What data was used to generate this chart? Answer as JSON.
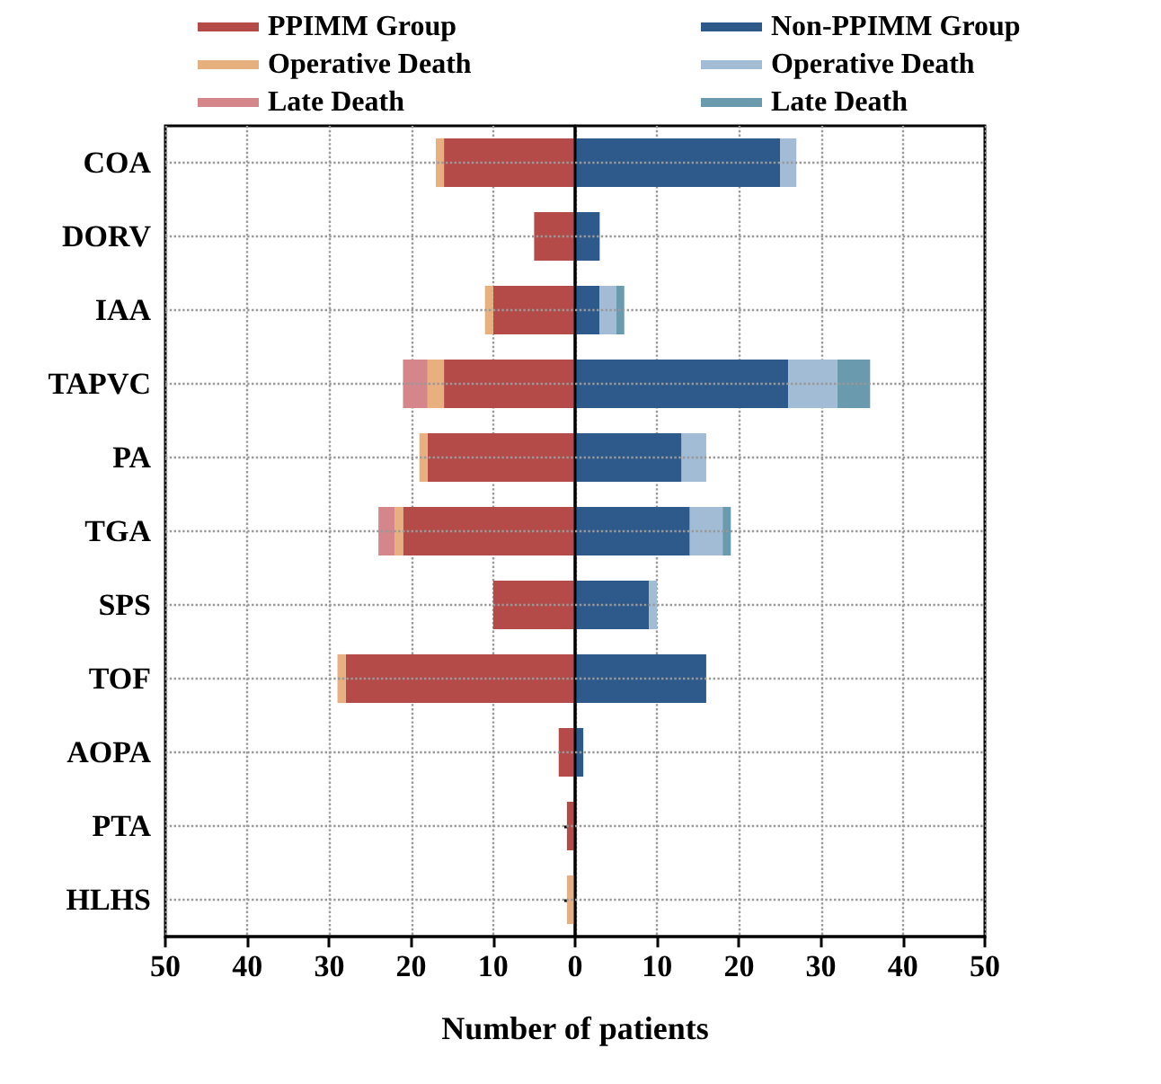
{
  "chart_data": {
    "type": "bar",
    "orientation": "horizontal",
    "stacked": true,
    "categories": [
      "COA",
      "DORV",
      "IAA",
      "TAPVC",
      "PA",
      "TGA",
      "SPS",
      "TOF",
      "AOPA",
      "PTA",
      "HLHS"
    ],
    "series": [
      {
        "name": "PPIMM Group",
        "color": "#b54b48",
        "values": [
          -16,
          -5,
          -10,
          -16,
          -18,
          -21,
          -10,
          -28,
          -2,
          -1,
          0
        ]
      },
      {
        "name": "Operative Death",
        "color": "#e8b07e",
        "values": [
          -1,
          0,
          -1,
          -2,
          -1,
          -1,
          0,
          -1,
          0,
          0,
          -1
        ]
      },
      {
        "name": "Late Death",
        "color": "#d4868a",
        "values": [
          0,
          0,
          0,
          -3,
          0,
          -2,
          0,
          0,
          0,
          0,
          0
        ]
      },
      {
        "name": "Non-PPIMM Group",
        "color": "#2d5a8a",
        "values": [
          25,
          3,
          3,
          26,
          13,
          14,
          9,
          16,
          1,
          0,
          0
        ]
      },
      {
        "name": "Operative Death",
        "color": "#a3bcd6",
        "values": [
          2,
          0,
          2,
          6,
          3,
          4,
          1,
          0,
          0,
          0,
          0
        ]
      },
      {
        "name": "Late Death",
        "color": "#6a9aae",
        "values": [
          0,
          0,
          1,
          4,
          0,
          1,
          0,
          0,
          0,
          0,
          0
        ]
      }
    ],
    "xlabel": "Number of patients",
    "xlim": [
      -50,
      50
    ],
    "xticks": [
      {
        "value": -50,
        "label": "50"
      },
      {
        "value": -40,
        "label": "40"
      },
      {
        "value": -30,
        "label": "30"
      },
      {
        "value": -20,
        "label": "20"
      },
      {
        "value": -10,
        "label": "10"
      },
      0,
      10,
      20,
      30,
      40,
      50
    ],
    "grid": true,
    "legend": "top"
  }
}
